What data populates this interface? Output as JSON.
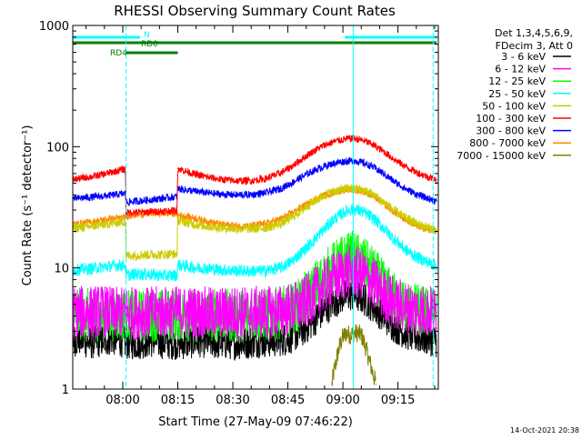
{
  "chart_data": {
    "type": "line",
    "title": "RHESSI Observing Summary Count Rates",
    "xlabel": "Start Time (27-May-09 07:46:22)",
    "ylabel": "Count Rate (s⁻¹ detector⁻¹)",
    "y_scale": "log",
    "ylim": [
      1,
      1000
    ],
    "y_tick_labels": [
      "1",
      "10",
      "100",
      "1000"
    ],
    "x_unit": "minutes of day",
    "xlim": [
      466.37,
      566.0
    ],
    "x_ticks": [
      480,
      495,
      510,
      525,
      540,
      555
    ],
    "x_tick_labels": [
      "08:00",
      "08:15",
      "08:30",
      "08:45",
      "09:00",
      "09:15"
    ],
    "legend_header": [
      "Det 1,3,4,5,6,9,",
      "FDecim 3, Att 0"
    ],
    "legend_position": "right",
    "series": [
      {
        "name": "3 - 6 keV",
        "color": "#000000",
        "points": [
          [
            466.5,
            2.5
          ],
          [
            468,
            2.6
          ],
          [
            471,
            2.4
          ],
          [
            474,
            2.5
          ],
          [
            477,
            2.6
          ],
          [
            480,
            2.5
          ],
          [
            480.9,
            2.4
          ],
          [
            484,
            2.4
          ],
          [
            488,
            2.5
          ],
          [
            492,
            2.4
          ],
          [
            494.9,
            2.4
          ],
          [
            497,
            2.4
          ],
          [
            501,
            2.5
          ],
          [
            505,
            2.4
          ],
          [
            509,
            2.4
          ],
          [
            513,
            2.4
          ],
          [
            517,
            2.5
          ],
          [
            521,
            2.5
          ],
          [
            525,
            2.6
          ],
          [
            528,
            2.9
          ],
          [
            531,
            3.4
          ],
          [
            534,
            4.2
          ],
          [
            537,
            5.1
          ],
          [
            540,
            5.8
          ],
          [
            542.5,
            6.0
          ],
          [
            545,
            5.7
          ],
          [
            548,
            4.9
          ],
          [
            551,
            4.0
          ],
          [
            554,
            3.3
          ],
          [
            557,
            2.9
          ],
          [
            560,
            2.7
          ],
          [
            563,
            2.6
          ],
          [
            565.5,
            2.5
          ]
        ]
      },
      {
        "name": "6 - 12 keV",
        "color": "#ff00ff",
        "points": [
          [
            466.5,
            4.3
          ],
          [
            470,
            4.3
          ],
          [
            474,
            4.4
          ],
          [
            478,
            4.2
          ],
          [
            480.9,
            4.3
          ],
          [
            485,
            4.2
          ],
          [
            490,
            4.3
          ],
          [
            494.9,
            4.3
          ],
          [
            500,
            4.3
          ],
          [
            505,
            4.2
          ],
          [
            510,
            4.3
          ],
          [
            515,
            4.3
          ],
          [
            520,
            4.3
          ],
          [
            525,
            4.5
          ],
          [
            528,
            4.8
          ],
          [
            531,
            5.6
          ],
          [
            534,
            6.7
          ],
          [
            537,
            8.0
          ],
          [
            540,
            9.0
          ],
          [
            542.5,
            9.5
          ],
          [
            545,
            8.9
          ],
          [
            548,
            7.6
          ],
          [
            551,
            6.1
          ],
          [
            554,
            5.1
          ],
          [
            557,
            4.7
          ],
          [
            560,
            4.5
          ],
          [
            563,
            4.4
          ],
          [
            565.5,
            4.3
          ]
        ]
      },
      {
        "name": "12 - 25 keV",
        "color": "#00ff00",
        "points": [
          [
            466.5,
            4.1
          ],
          [
            470,
            4.2
          ],
          [
            474,
            4.0
          ],
          [
            478,
            4.1
          ],
          [
            480.9,
            4.1
          ],
          [
            485,
            4.0
          ],
          [
            490,
            4.1
          ],
          [
            494.9,
            4.1
          ],
          [
            500,
            4.0
          ],
          [
            505,
            4.1
          ],
          [
            510,
            4.0
          ],
          [
            515,
            4.1
          ],
          [
            520,
            4.1
          ],
          [
            525,
            4.4
          ],
          [
            528,
            5.0
          ],
          [
            531,
            6.1
          ],
          [
            534,
            7.8
          ],
          [
            537,
            9.8
          ],
          [
            540,
            11.5
          ],
          [
            542.5,
            12.3
          ],
          [
            545,
            11.4
          ],
          [
            548,
            9.3
          ],
          [
            551,
            7.0
          ],
          [
            554,
            5.6
          ],
          [
            557,
            4.9
          ],
          [
            560,
            4.5
          ],
          [
            563,
            4.3
          ],
          [
            565.5,
            4.2
          ]
        ]
      },
      {
        "name": "25 - 50 keV",
        "color": "#00ffff",
        "points": [
          [
            466.5,
            9.5
          ],
          [
            468,
            9.7
          ],
          [
            472,
            9.9
          ],
          [
            476,
            10.3
          ],
          [
            480.7,
            10.6
          ],
          [
            480.9,
            8.7
          ],
          [
            484,
            8.9
          ],
          [
            488,
            8.8
          ],
          [
            492,
            8.6
          ],
          [
            494.8,
            8.7
          ],
          [
            495,
            10.6
          ],
          [
            499,
            10.1
          ],
          [
            503,
            9.9
          ],
          [
            507,
            9.6
          ],
          [
            511,
            9.5
          ],
          [
            515,
            9.4
          ],
          [
            519,
            9.5
          ],
          [
            523,
            10.0
          ],
          [
            526,
            11.3
          ],
          [
            529,
            13.6
          ],
          [
            532,
            16.7
          ],
          [
            535,
            21.0
          ],
          [
            538,
            25.8
          ],
          [
            541,
            29.5
          ],
          [
            542.8,
            30.5
          ],
          [
            545,
            29.4
          ],
          [
            548,
            26.0
          ],
          [
            551,
            21.3
          ],
          [
            554,
            17.2
          ],
          [
            557,
            14.1
          ],
          [
            560,
            12.3
          ],
          [
            563,
            11.2
          ],
          [
            565.5,
            10.4
          ]
        ]
      },
      {
        "name": "50 - 100 keV",
        "color": "#cccc00",
        "points": [
          [
            466.5,
            21.2
          ],
          [
            470,
            21.8
          ],
          [
            474,
            22.7
          ],
          [
            478,
            23.6
          ],
          [
            480.7,
            24.3
          ],
          [
            480.9,
            12.6
          ],
          [
            485,
            12.8
          ],
          [
            490,
            12.9
          ],
          [
            494.8,
            13.0
          ],
          [
            495,
            24.8
          ],
          [
            499,
            23.0
          ],
          [
            503,
            22.1
          ],
          [
            507,
            21.5
          ],
          [
            511,
            21.1
          ],
          [
            515,
            21.0
          ],
          [
            519,
            21.5
          ],
          [
            523,
            23.2
          ],
          [
            526,
            26.0
          ],
          [
            529,
            30.2
          ],
          [
            532,
            35.2
          ],
          [
            535,
            39.8
          ],
          [
            538,
            43.2
          ],
          [
            541,
            45.0
          ],
          [
            542.8,
            45.3
          ],
          [
            545,
            44.3
          ],
          [
            548,
            40.6
          ],
          [
            551,
            35.0
          ],
          [
            554,
            29.6
          ],
          [
            557,
            25.8
          ],
          [
            560,
            23.2
          ],
          [
            563,
            21.6
          ],
          [
            565.5,
            20.4
          ]
        ]
      },
      {
        "name": "100 - 300 keV",
        "color": "#ff0000",
        "points": [
          [
            466.5,
            53.5
          ],
          [
            468,
            54.5
          ],
          [
            472,
            56.8
          ],
          [
            476,
            60.5
          ],
          [
            480.7,
            65.5
          ],
          [
            480.9,
            28.6
          ],
          [
            485,
            28.8
          ],
          [
            490,
            29.3
          ],
          [
            494.8,
            29.8
          ],
          [
            495,
            66.0
          ],
          [
            499,
            60.0
          ],
          [
            503,
            56.0
          ],
          [
            507,
            53.5
          ],
          [
            511,
            52.3
          ],
          [
            515,
            52.3
          ],
          [
            519,
            54.5
          ],
          [
            523,
            60.5
          ],
          [
            526,
            68.5
          ],
          [
            529,
            79.5
          ],
          [
            532,
            92.0
          ],
          [
            535,
            103.0
          ],
          [
            538,
            111.0
          ],
          [
            541,
            116.0
          ],
          [
            542.8,
            117.0
          ],
          [
            545,
            114.0
          ],
          [
            548,
            104.5
          ],
          [
            551,
            91.5
          ],
          [
            554,
            78.5
          ],
          [
            557,
            68.5
          ],
          [
            560,
            61.5
          ],
          [
            563,
            56.5
          ],
          [
            565.5,
            53.5
          ]
        ]
      },
      {
        "name": "300 - 800 keV",
        "color": "#0000ff",
        "points": [
          [
            466.5,
            37.2
          ],
          [
            468,
            37.6
          ],
          [
            472,
            38.4
          ],
          [
            476,
            39.5
          ],
          [
            480.7,
            41.0
          ],
          [
            480.9,
            34.8
          ],
          [
            485,
            35.8
          ],
          [
            490,
            37.2
          ],
          [
            494.8,
            38.8
          ],
          [
            495,
            45.0
          ],
          [
            499,
            43.2
          ],
          [
            503,
            41.6
          ],
          [
            507,
            40.4
          ],
          [
            511,
            40.0
          ],
          [
            515,
            40.2
          ],
          [
            519,
            41.6
          ],
          [
            523,
            45.0
          ],
          [
            526,
            50.0
          ],
          [
            529,
            56.6
          ],
          [
            532,
            63.2
          ],
          [
            535,
            69.0
          ],
          [
            538,
            73.5
          ],
          [
            541,
            76.0
          ],
          [
            542.8,
            76.5
          ],
          [
            545,
            74.5
          ],
          [
            548,
            68.5
          ],
          [
            551,
            60.0
          ],
          [
            554,
            51.5
          ],
          [
            557,
            45.0
          ],
          [
            560,
            40.5
          ],
          [
            563,
            37.5
          ],
          [
            565.5,
            35.5
          ]
        ]
      },
      {
        "name": "800 - 7000 keV",
        "color": "#ff8800",
        "points": [
          [
            466.5,
            23.0
          ],
          [
            468,
            23.2
          ],
          [
            472,
            24.0
          ],
          [
            476,
            25.2
          ],
          [
            480.7,
            26.0
          ],
          [
            480.9,
            26.7
          ],
          [
            485,
            27.8
          ],
          [
            490,
            28.3
          ],
          [
            494.8,
            28.0
          ],
          [
            495,
            27.4
          ],
          [
            499,
            26.0
          ],
          [
            503,
            24.2
          ],
          [
            507,
            22.8
          ],
          [
            511,
            22.2
          ],
          [
            515,
            22.2
          ],
          [
            519,
            23.2
          ],
          [
            523,
            25.3
          ],
          [
            526,
            28.2
          ],
          [
            529,
            32.0
          ],
          [
            532,
            36.0
          ],
          [
            535,
            39.8
          ],
          [
            538,
            42.5
          ],
          [
            541,
            44.0
          ],
          [
            542.8,
            44.2
          ],
          [
            545,
            43.2
          ],
          [
            548,
            39.5
          ],
          [
            551,
            34.0
          ],
          [
            554,
            28.5
          ],
          [
            557,
            25.0
          ],
          [
            560,
            22.5
          ],
          [
            563,
            20.8
          ],
          [
            565.5,
            19.8
          ]
        ]
      },
      {
        "name": "7000 - 15000 keV",
        "color": "#808000",
        "points": [
          [
            537,
            1.1
          ],
          [
            538,
            1.6
          ],
          [
            539,
            2.2
          ],
          [
            540,
            2.7
          ],
          [
            541,
            2.9
          ],
          [
            542,
            2.8
          ],
          [
            543,
            2.9
          ],
          [
            544,
            2.9
          ],
          [
            545,
            2.8
          ],
          [
            546,
            2.3
          ],
          [
            547,
            1.8
          ],
          [
            548,
            1.4
          ],
          [
            549,
            1.1
          ]
        ]
      }
    ],
    "attenuator_bars": [
      {
        "label": "N",
        "color": "#00ffff",
        "segments": [
          [
            466.5,
            484.7
          ],
          [
            540.5,
            565.5
          ]
        ]
      },
      {
        "label": "RD0",
        "color": "#008000",
        "segments": [
          [
            466.5,
            565.5
          ]
        ]
      },
      {
        "label": "RD4",
        "color": "#008000",
        "segments": [
          [
            480.9,
            495.0
          ]
        ]
      }
    ],
    "time_markers": [
      480.9,
      542.8,
      564.6
    ],
    "timestamp": "14-Oct-2021 20:38"
  }
}
